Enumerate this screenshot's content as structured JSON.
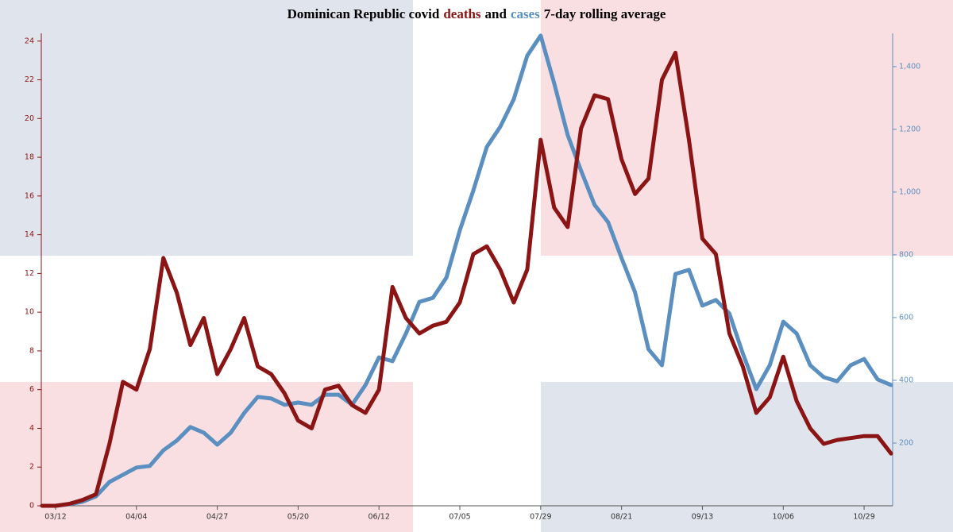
{
  "chart_data": {
    "type": "line",
    "title_parts": [
      "Dominican Republic covid",
      "deaths",
      "and",
      "cases",
      "7-day rolling average"
    ],
    "categories": [
      null,
      "03/12",
      null,
      null,
      null,
      null,
      null,
      "04/04",
      null,
      null,
      null,
      null,
      null,
      "04/27",
      null,
      null,
      null,
      null,
      null,
      "05/20",
      null,
      null,
      null,
      null,
      null,
      "06/12",
      null,
      null,
      null,
      null,
      null,
      "07/05",
      null,
      null,
      null,
      null,
      null,
      "07/29",
      null,
      null,
      null,
      null,
      null,
      "08/21",
      null,
      null,
      null,
      null,
      null,
      "09/13",
      null,
      null,
      null,
      null,
      null,
      "10/06",
      null,
      null,
      null,
      null,
      null,
      "10/29",
      null,
      null
    ],
    "series": [
      {
        "name": "deaths",
        "color": "#8b1414",
        "axis": "y",
        "values": [
          0,
          0,
          0.1,
          0.3,
          0.6,
          3.2,
          6.4,
          6.0,
          8.1,
          12.8,
          11.0,
          8.3,
          9.7,
          6.8,
          8.1,
          9.7,
          7.2,
          6.8,
          5.8,
          4.4,
          4.0,
          6.0,
          6.2,
          5.2,
          4.8,
          6.0,
          11.3,
          9.7,
          8.9,
          9.3,
          9.5,
          10.5,
          13.0,
          13.4,
          12.2,
          10.5,
          12.2,
          18.9,
          15.4,
          14.4,
          19.5,
          21.2,
          21.0,
          17.9,
          16.1,
          16.9,
          22.0,
          23.4,
          18.9,
          13.8,
          13.0,
          8.9,
          7.2,
          4.8,
          5.6,
          7.7,
          5.4,
          4.0,
          3.2,
          3.4,
          3.5,
          3.6,
          3.6,
          2.7
        ]
      },
      {
        "name": "cases",
        "color": "#5b8fc0",
        "axis": "y2",
        "values": [
          0,
          0,
          5,
          13,
          30,
          76,
          99,
          122,
          127,
          177,
          208,
          251,
          233,
          195,
          233,
          296,
          347,
          342,
          322,
          329,
          322,
          354,
          354,
          322,
          385,
          473,
          461,
          549,
          650,
          663,
          727,
          878,
          1005,
          1144,
          1208,
          1296,
          1435,
          1499,
          1347,
          1182,
          1068,
          959,
          904,
          790,
          681,
          499,
          448,
          739,
          752,
          638,
          656,
          613,
          486,
          372,
          448,
          587,
          549,
          448,
          410,
          397,
          448,
          468,
          403,
          385
        ]
      }
    ],
    "ylim": [
      0,
      24.4
    ],
    "yticks": [
      0,
      2,
      4,
      6,
      8,
      10,
      12,
      14,
      16,
      18,
      20,
      22,
      24
    ],
    "y2lim": [
      0,
      1506
    ],
    "y2ticks": [
      200,
      400,
      600,
      800,
      {
        "value": 1000,
        "label": "1,000"
      },
      {
        "value": 1200,
        "label": "1,200"
      },
      {
        "value": 1400,
        "label": "1,400"
      }
    ]
  }
}
